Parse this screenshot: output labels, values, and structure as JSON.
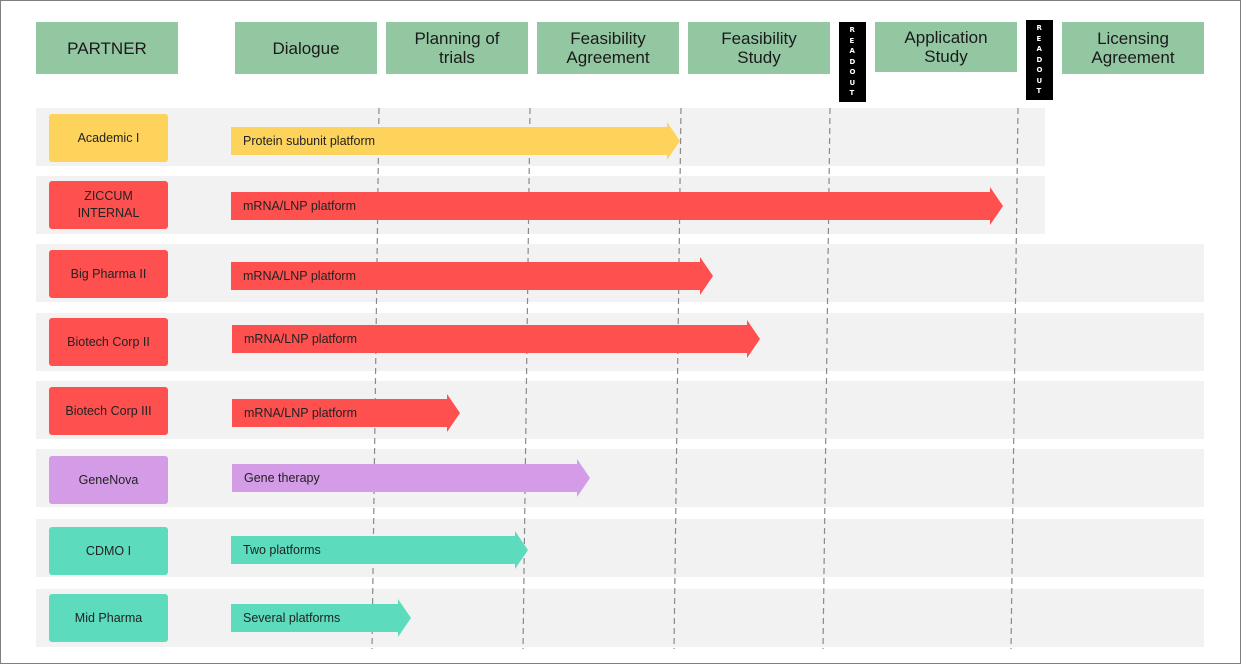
{
  "colors": {
    "header_bg": "#93c7a2",
    "band_bg": "#f2f2f2",
    "academic": "#fdd35b",
    "internal": "#ff5050",
    "gene": "#d49be6",
    "cdmo": "#5cdcbc",
    "readout_bg": "#000000"
  },
  "headers": {
    "partner": "PARTNER",
    "dialogue": "Dialogue",
    "planning": "Planning of\ntrials",
    "feasibility_agreement": "Feasibility\nAgreement",
    "feasibility_study": "Feasibility\nStudy",
    "application_study": "Application\nStudy",
    "licensing": "Licensing\nAgreement"
  },
  "readout_label": "READOUT",
  "rows": [
    {
      "partner": "Academic I",
      "platform": "Protein subunit platform",
      "color": "#fdd35b"
    },
    {
      "partner": "ZICCUM\nINTERNAL",
      "platform": "mRNA/LNP platform",
      "color": "#ff5050"
    },
    {
      "partner": "Big Pharma II",
      "platform": "mRNA/LNP platform",
      "color": "#ff5050"
    },
    {
      "partner": "Biotech Corp II",
      "platform": "mRNA/LNP platform",
      "color": "#ff5050"
    },
    {
      "partner": "Biotech Corp III",
      "platform": "mRNA/LNP platform",
      "color": "#ff5050"
    },
    {
      "partner": "GeneNova",
      "platform": "Gene therapy",
      "color": "#d49be6"
    },
    {
      "partner": "CDMO I",
      "platform": "Two platforms",
      "color": "#5cdcbc"
    },
    {
      "partner": "Mid Pharma",
      "platform": "Several platforms",
      "color": "#5cdcbc"
    }
  ]
}
